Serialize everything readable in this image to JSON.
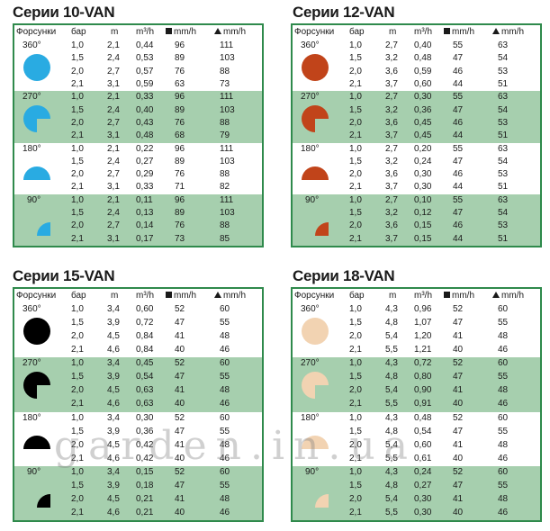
{
  "headers": {
    "nozzles": "Форсунки",
    "bar": "бар",
    "m": "m",
    "flow": "m³/h",
    "sq_prec": "mm/h",
    "tri_prec": "mm/h"
  },
  "watermark": "garden.in.ua",
  "series": [
    {
      "title": "Серии 10-VAN",
      "color": "#29abe2",
      "groups": [
        {
          "angle": "360°",
          "rows": [
            [
              "1,0",
              "2,1",
              "0,44",
              "96",
              "111"
            ],
            [
              "1,5",
              "2,4",
              "0,53",
              "89",
              "103"
            ],
            [
              "2,0",
              "2,7",
              "0,57",
              "76",
              "88"
            ],
            [
              "2,1",
              "3,1",
              "0,59",
              "63",
              "73"
            ]
          ]
        },
        {
          "angle": "270°",
          "rows": [
            [
              "1,0",
              "2,1",
              "0,33",
              "96",
              "111"
            ],
            [
              "1,5",
              "2,4",
              "0,40",
              "89",
              "103"
            ],
            [
              "2,0",
              "2,7",
              "0,43",
              "76",
              "88"
            ],
            [
              "2,1",
              "3,1",
              "0,48",
              "68",
              "79"
            ]
          ]
        },
        {
          "angle": "180°",
          "rows": [
            [
              "1,0",
              "2,1",
              "0,22",
              "96",
              "111"
            ],
            [
              "1,5",
              "2,4",
              "0,27",
              "89",
              "103"
            ],
            [
              "2,0",
              "2,7",
              "0,29",
              "76",
              "88"
            ],
            [
              "2,1",
              "3,1",
              "0,33",
              "71",
              "82"
            ]
          ]
        },
        {
          "angle": "90°",
          "rows": [
            [
              "1,0",
              "2,1",
              "0,11",
              "96",
              "111"
            ],
            [
              "1,5",
              "2,4",
              "0,13",
              "89",
              "103"
            ],
            [
              "2,0",
              "2,7",
              "0,14",
              "76",
              "88"
            ],
            [
              "2,1",
              "3,1",
              "0,17",
              "73",
              "85"
            ]
          ]
        }
      ]
    },
    {
      "title": "Серии 12-VAN",
      "color": "#c1441a",
      "groups": [
        {
          "angle": "360°",
          "rows": [
            [
              "1,0",
              "2,7",
              "0,40",
              "55",
              "63"
            ],
            [
              "1,5",
              "3,2",
              "0,48",
              "47",
              "54"
            ],
            [
              "2,0",
              "3,6",
              "0,59",
              "46",
              "53"
            ],
            [
              "2,1",
              "3,7",
              "0,60",
              "44",
              "51"
            ]
          ]
        },
        {
          "angle": "270°",
          "rows": [
            [
              "1,0",
              "2,7",
              "0,30",
              "55",
              "63"
            ],
            [
              "1,5",
              "3,2",
              "0,36",
              "47",
              "54"
            ],
            [
              "2,0",
              "3,6",
              "0,45",
              "46",
              "53"
            ],
            [
              "2,1",
              "3,7",
              "0,45",
              "44",
              "51"
            ]
          ]
        },
        {
          "angle": "180°",
          "rows": [
            [
              "1,0",
              "2,7",
              "0,20",
              "55",
              "63"
            ],
            [
              "1,5",
              "3,2",
              "0,24",
              "47",
              "54"
            ],
            [
              "2,0",
              "3,6",
              "0,30",
              "46",
              "53"
            ],
            [
              "2,1",
              "3,7",
              "0,30",
              "44",
              "51"
            ]
          ]
        },
        {
          "angle": "90°",
          "rows": [
            [
              "1,0",
              "2,7",
              "0,10",
              "55",
              "63"
            ],
            [
              "1,5",
              "3,2",
              "0,12",
              "47",
              "54"
            ],
            [
              "2,0",
              "3,6",
              "0,15",
              "46",
              "53"
            ],
            [
              "2,1",
              "3,7",
              "0,15",
              "44",
              "51"
            ]
          ]
        }
      ]
    },
    {
      "title": "Серии 15-VAN",
      "color": "#000000",
      "groups": [
        {
          "angle": "360°",
          "rows": [
            [
              "1,0",
              "3,4",
              "0,60",
              "52",
              "60"
            ],
            [
              "1,5",
              "3,9",
              "0,72",
              "47",
              "55"
            ],
            [
              "2,0",
              "4,5",
              "0,84",
              "41",
              "48"
            ],
            [
              "2,1",
              "4,6",
              "0,84",
              "40",
              "46"
            ]
          ]
        },
        {
          "angle": "270°",
          "rows": [
            [
              "1,0",
              "3,4",
              "0,45",
              "52",
              "60"
            ],
            [
              "1,5",
              "3,9",
              "0,54",
              "47",
              "55"
            ],
            [
              "2,0",
              "4,5",
              "0,63",
              "41",
              "48"
            ],
            [
              "2,1",
              "4,6",
              "0,63",
              "40",
              "46"
            ]
          ]
        },
        {
          "angle": "180°",
          "rows": [
            [
              "1,0",
              "3,4",
              "0,30",
              "52",
              "60"
            ],
            [
              "1,5",
              "3,9",
              "0,36",
              "47",
              "55"
            ],
            [
              "2,0",
              "4,5",
              "0,42",
              "41",
              "48"
            ],
            [
              "2,1",
              "4,6",
              "0,42",
              "40",
              "46"
            ]
          ]
        },
        {
          "angle": "90°",
          "rows": [
            [
              "1,0",
              "3,4",
              "0,15",
              "52",
              "60"
            ],
            [
              "1,5",
              "3,9",
              "0,18",
              "47",
              "55"
            ],
            [
              "2,0",
              "4,5",
              "0,21",
              "41",
              "48"
            ],
            [
              "2,1",
              "4,6",
              "0,21",
              "40",
              "46"
            ]
          ]
        }
      ]
    },
    {
      "title": "Серии 18-VAN",
      "color": "#f2d3b2",
      "groups": [
        {
          "angle": "360°",
          "rows": [
            [
              "1,0",
              "4,3",
              "0,96",
              "52",
              "60"
            ],
            [
              "1,5",
              "4,8",
              "1,07",
              "47",
              "55"
            ],
            [
              "2,0",
              "5,4",
              "1,20",
              "41",
              "48"
            ],
            [
              "2,1",
              "5,5",
              "1,21",
              "40",
              "46"
            ]
          ]
        },
        {
          "angle": "270°",
          "rows": [
            [
              "1,0",
              "4,3",
              "0,72",
              "52",
              "60"
            ],
            [
              "1,5",
              "4,8",
              "0,80",
              "47",
              "55"
            ],
            [
              "2,0",
              "5,4",
              "0,90",
              "41",
              "48"
            ],
            [
              "2,1",
              "5,5",
              "0,91",
              "40",
              "46"
            ]
          ]
        },
        {
          "angle": "180°",
          "rows": [
            [
              "1,0",
              "4,3",
              "0,48",
              "52",
              "60"
            ],
            [
              "1,5",
              "4,8",
              "0,54",
              "47",
              "55"
            ],
            [
              "2,0",
              "5,4",
              "0,60",
              "41",
              "48"
            ],
            [
              "2,1",
              "5,5",
              "0,61",
              "40",
              "46"
            ]
          ]
        },
        {
          "angle": "90°",
          "rows": [
            [
              "1,0",
              "4,3",
              "0,24",
              "52",
              "60"
            ],
            [
              "1,5",
              "4,8",
              "0,27",
              "47",
              "55"
            ],
            [
              "2,0",
              "5,4",
              "0,30",
              "41",
              "48"
            ],
            [
              "2,1",
              "5,5",
              "0,30",
              "40",
              "46"
            ]
          ]
        }
      ]
    }
  ]
}
